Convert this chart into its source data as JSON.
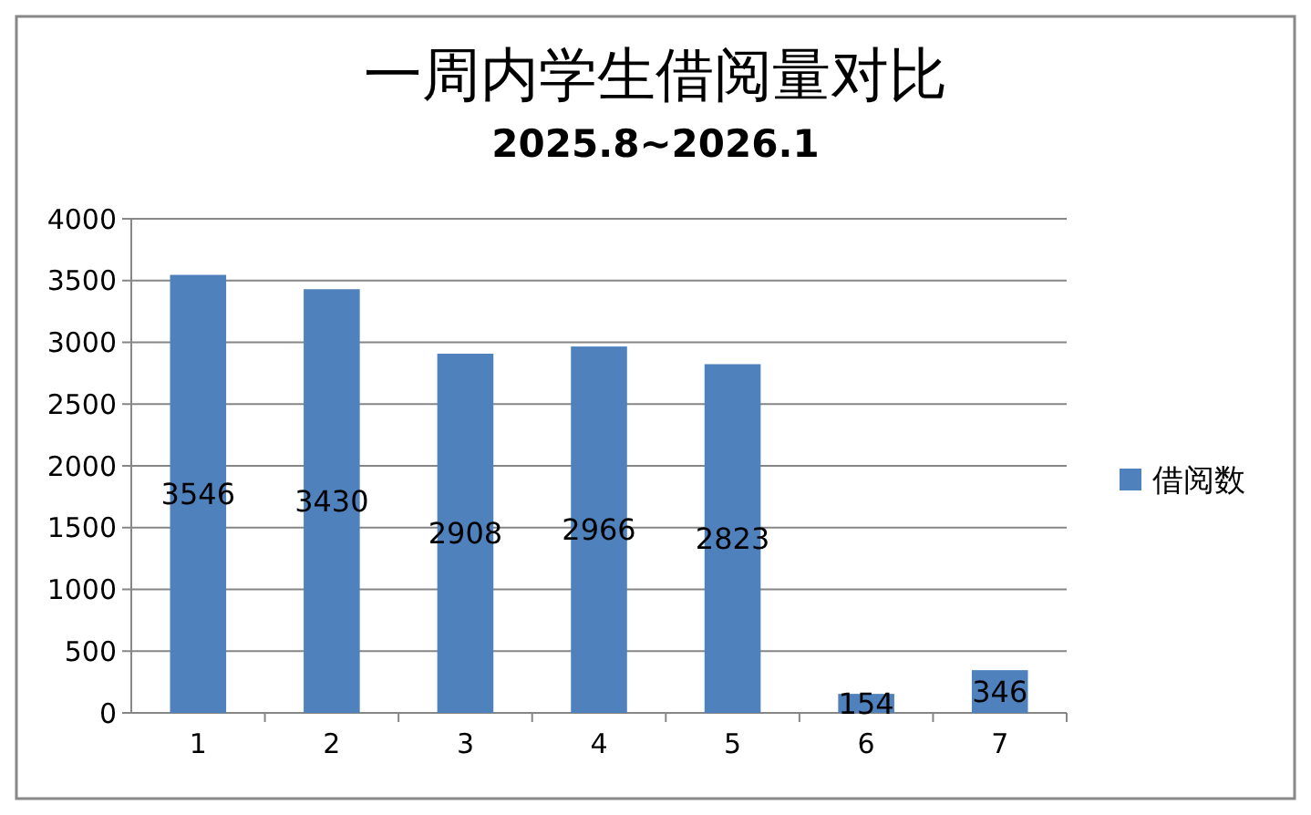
{
  "chart_data": {
    "type": "bar",
    "title": "一周内学生借阅量对比",
    "subtitle": "2025.8~2026.1",
    "categories": [
      "1",
      "2",
      "3",
      "4",
      "5",
      "6",
      "7"
    ],
    "series": [
      {
        "name": "借阅数",
        "color": "#4f81bd",
        "values": [
          3546,
          3430,
          2908,
          2966,
          2823,
          154,
          346
        ]
      }
    ],
    "ylim": [
      0,
      4000
    ],
    "yticks": [
      0,
      500,
      1000,
      1500,
      2000,
      2500,
      3000,
      3500,
      4000
    ],
    "grid": "y",
    "legend": "right",
    "data_labels": true
  }
}
